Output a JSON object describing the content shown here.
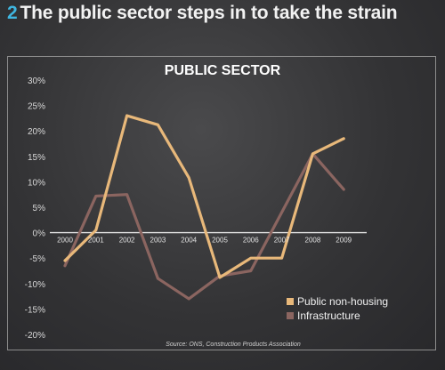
{
  "header": {
    "number": "2",
    "title": "The public sector steps in to take the strain"
  },
  "chart_data": {
    "type": "line",
    "title": "PUBLIC SECTOR",
    "x": [
      "2000",
      "2001",
      "2002",
      "2003",
      "2004",
      "2005",
      "2006",
      "2007",
      "2008",
      "2009"
    ],
    "y_ticks": [
      "30%",
      "25%",
      "20%",
      "15%",
      "10%",
      "5%",
      "0%",
      "-5%",
      "-10%",
      "-15%",
      "-20%"
    ],
    "ylim": [
      -20,
      30
    ],
    "series": [
      {
        "name": "Public non-housing",
        "color": "#e8b87a",
        "values": [
          -5.5,
          0.5,
          23,
          21.2,
          10.8,
          -8.8,
          -5,
          -5,
          15.5,
          18.5
        ]
      },
      {
        "name": "Infrastructure",
        "color": "#8b6560",
        "values": [
          -6.5,
          7.2,
          7.5,
          -9,
          -13,
          -8.5,
          -7.5,
          4,
          15.5,
          8.5
        ]
      }
    ],
    "legend_position": "bottom-right",
    "source": "Source: ONS, Construction Products Association"
  }
}
